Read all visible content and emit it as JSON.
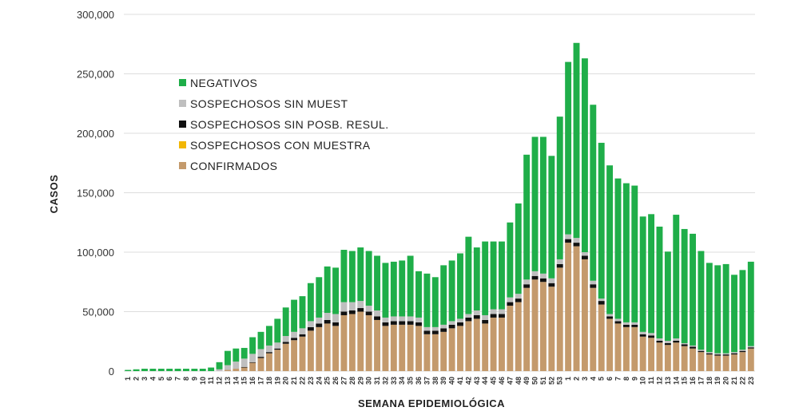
{
  "chart_data": {
    "type": "bar",
    "stacked": true,
    "xlabel": "SEMANA EPIDEMIOLÓGICA",
    "ylabel": "CASOS",
    "ylim": [
      0,
      300000
    ],
    "yticks": [
      0,
      50000,
      100000,
      150000,
      200000,
      250000,
      300000
    ],
    "ytick_labels": [
      "0",
      "50,000",
      "100,000",
      "150,000",
      "200,000",
      "250,000",
      "300,000"
    ],
    "grid": true,
    "legend_position": "upper-left",
    "categories": [
      "1",
      "2",
      "3",
      "4",
      "5",
      "6",
      "7",
      "8",
      "9",
      "10",
      "11",
      "12",
      "13",
      "14",
      "15",
      "16",
      "17",
      "18",
      "19",
      "20",
      "21",
      "22",
      "23",
      "24",
      "25",
      "26",
      "27",
      "28",
      "29",
      "30",
      "31",
      "32",
      "33",
      "34",
      "35",
      "36",
      "37",
      "38",
      "39",
      "40",
      "41",
      "42",
      "43",
      "44",
      "45",
      "46",
      "47",
      "48",
      "49",
      "50",
      "51",
      "52",
      "53",
      "1",
      "2",
      "3",
      "4",
      "5",
      "6",
      "7",
      "8",
      "9",
      "10",
      "11",
      "12",
      "13",
      "14",
      "15",
      "16",
      "17",
      "18",
      "19",
      "20",
      "21",
      "22",
      "23"
    ],
    "series": [
      {
        "name": "CONFIRMADOS",
        "color": "#c49a6c",
        "values": [
          0,
          0,
          0,
          0,
          0,
          0,
          0,
          0,
          0,
          0,
          0,
          0,
          1000,
          2000,
          3000,
          7000,
          11000,
          15000,
          18000,
          23000,
          26000,
          29000,
          34000,
          37000,
          40000,
          38000,
          47000,
          48000,
          50000,
          47000,
          43000,
          38000,
          39000,
          39000,
          39000,
          38000,
          31000,
          31000,
          33000,
          36000,
          38000,
          42000,
          44000,
          40000,
          45000,
          45000,
          55000,
          58000,
          70000,
          77000,
          75000,
          71000,
          87000,
          108000,
          105000,
          94000,
          70000,
          56000,
          44000,
          40000,
          37000,
          37000,
          29000,
          28000,
          24000,
          22000,
          24000,
          21000,
          19000,
          16000,
          14000,
          13000,
          13000,
          14000,
          16000,
          19000
        ]
      },
      {
        "name": "SOSPECHOSOS CON MUESTRA",
        "color": "#f2b705",
        "values": [
          0,
          0,
          0,
          0,
          0,
          0,
          0,
          0,
          0,
          0,
          0,
          0,
          0,
          0,
          0,
          0,
          0,
          0,
          0,
          0,
          0,
          0,
          0,
          0,
          0,
          0,
          0,
          0,
          0,
          0,
          0,
          0,
          0,
          0,
          0,
          0,
          0,
          0,
          0,
          0,
          0,
          0,
          0,
          0,
          0,
          0,
          0,
          0,
          0,
          0,
          0,
          0,
          0,
          0,
          0,
          0,
          0,
          0,
          0,
          0,
          0,
          0,
          0,
          0,
          0,
          0,
          0,
          0,
          0,
          0,
          0,
          0,
          0,
          0,
          0,
          0
        ]
      },
      {
        "name": "SOSPECHOSOS SIN POSB. RESUL.",
        "color": "#111111",
        "values": [
          0,
          0,
          0,
          0,
          0,
          0,
          0,
          0,
          0,
          0,
          0,
          0,
          0,
          0,
          500,
          500,
          1000,
          1000,
          1000,
          1500,
          2000,
          2000,
          3000,
          3000,
          3000,
          3000,
          3000,
          3000,
          3000,
          3000,
          3000,
          3000,
          3000,
          3000,
          3000,
          3000,
          3000,
          3000,
          3000,
          3000,
          3000,
          3000,
          3000,
          3000,
          3000,
          3000,
          3000,
          3000,
          3000,
          3000,
          3000,
          3000,
          3000,
          3000,
          3000,
          3000,
          3000,
          3000,
          2000,
          2000,
          2000,
          2000,
          2000,
          2000,
          1500,
          1500,
          1500,
          1500,
          1500,
          1000,
          1000,
          1000,
          1000,
          1000,
          1000,
          1000
        ]
      },
      {
        "name": "SOSPECHOSOS SIN MUEST",
        "color": "#bfbfbf",
        "values": [
          0,
          0,
          0,
          0,
          0,
          0,
          0,
          0,
          0,
          0,
          0,
          1500,
          4000,
          6000,
          7000,
          7000,
          6500,
          5500,
          5000,
          5000,
          5000,
          5000,
          5000,
          5000,
          6000,
          7000,
          8000,
          7000,
          6000,
          5000,
          5000,
          4000,
          4000,
          4000,
          4000,
          4000,
          3000,
          3000,
          3000,
          3000,
          3000,
          3000,
          4000,
          4000,
          4000,
          4000,
          4000,
          4000,
          4000,
          4000,
          4000,
          4000,
          4000,
          4000,
          4000,
          3000,
          3000,
          2000,
          2000,
          2000,
          2000,
          2000,
          2000,
          2000,
          2000,
          2000,
          2000,
          1000,
          1000,
          1000,
          1000,
          1000,
          1000,
          1000,
          1000,
          1000
        ]
      },
      {
        "name": "NEGATIVOS",
        "color": "#1fae49",
        "values": [
          1000,
          1500,
          2000,
          2000,
          2000,
          2000,
          2000,
          2000,
          2000,
          2000,
          3000,
          6000,
          12000,
          11000,
          9000,
          14000,
          14500,
          16500,
          20000,
          24000,
          27000,
          27000,
          32000,
          34000,
          39000,
          39000,
          44000,
          43000,
          45000,
          46000,
          46000,
          46000,
          46000,
          47000,
          51000,
          39000,
          45000,
          42000,
          50000,
          51000,
          55000,
          65000,
          53000,
          62000,
          57000,
          57000,
          63000,
          76000,
          105000,
          113000,
          115000,
          103000,
          120000,
          145000,
          164000,
          163000,
          148000,
          131000,
          125000,
          118000,
          117000,
          115000,
          97000,
          100000,
          94000,
          75000,
          104000,
          96000,
          94000,
          83000,
          75000,
          74000,
          75000,
          65000,
          67000,
          71000
        ]
      }
    ]
  }
}
